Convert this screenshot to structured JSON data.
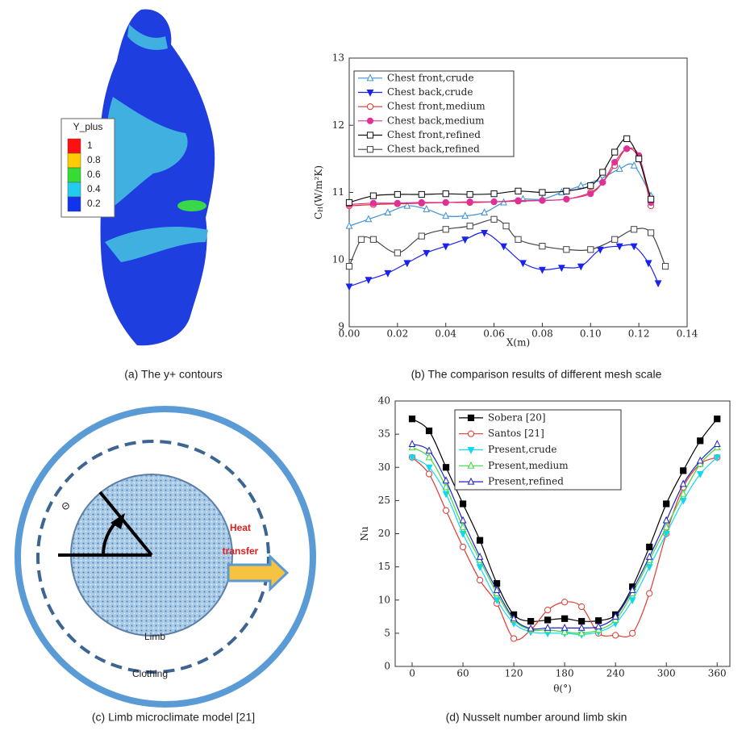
{
  "captions": [
    "(a) The y+ contours",
    "(b) The comparison results of different mesh scale",
    "(c) Limb microclimate model [21]",
    "(d) Nusselt number around limb skin"
  ],
  "contour_legend": {
    "title": "Y_plus",
    "labels": [
      "1",
      "0.8",
      "0.6",
      "0.4",
      "0.2"
    ],
    "colors": [
      "#ff1010",
      "#ffcc00",
      "#33dd33",
      "#22ccee",
      "#1133ee"
    ]
  },
  "diagram": {
    "angle": "Θ",
    "heat": "Heat",
    "transfer": "transfer",
    "limb": "Limb",
    "clothing": "Clothing"
  },
  "chart_data": [
    {
      "type": "line",
      "xlabel": "X(m)",
      "ylabel": {
        "main": "C",
        "sub": "H",
        "unit": "(W/m²K)"
      },
      "xlim": [
        0,
        0.14
      ],
      "xticks": [
        {
          "value": 0,
          "label": "0.00"
        },
        0.02,
        0.04,
        0.06,
        0.08,
        {
          "value": 0.1,
          "label": "0.10"
        },
        0.12,
        0.14
      ],
      "ylim": [
        9,
        13
      ],
      "yticks": [
        9,
        10,
        11,
        12,
        13
      ],
      "legend": "upper left",
      "series": [
        {
          "name": "Chest front,crude",
          "color": "#3f8fd8",
          "marker": "triangle-up",
          "filled": false,
          "x": [
            0,
            0.008,
            0.016,
            0.024,
            0.032,
            0.04,
            0.048,
            0.056,
            0.064,
            0.072,
            0.08,
            0.088,
            0.096,
            0.104,
            0.112,
            0.118,
            0.125
          ],
          "values": [
            10.5,
            10.6,
            10.7,
            10.8,
            10.75,
            10.65,
            10.65,
            10.7,
            10.85,
            10.9,
            10.9,
            11.0,
            11.1,
            11.2,
            11.35,
            11.4,
            10.95
          ]
        },
        {
          "name": "Chest back,crude",
          "color": "#1a22ee",
          "marker": "triangle-down",
          "filled": true,
          "x": [
            0,
            0.008,
            0.016,
            0.024,
            0.032,
            0.04,
            0.048,
            0.056,
            0.064,
            0.072,
            0.08,
            0.088,
            0.096,
            0.104,
            0.112,
            0.118,
            0.124,
            0.128
          ],
          "values": [
            9.6,
            9.7,
            9.8,
            9.95,
            10.1,
            10.2,
            10.3,
            10.4,
            10.2,
            9.95,
            9.85,
            9.88,
            9.9,
            10.15,
            10.2,
            10.2,
            9.95,
            9.65
          ]
        },
        {
          "name": "Chest front,medium",
          "color": "#dd3030",
          "marker": "circle",
          "filled": false,
          "x": [
            0,
            0.01,
            0.02,
            0.03,
            0.04,
            0.05,
            0.06,
            0.07,
            0.08,
            0.09,
            0.1,
            0.105,
            0.11,
            0.115,
            0.12,
            0.125
          ],
          "values": [
            10.8,
            10.82,
            10.83,
            10.84,
            10.85,
            10.85,
            10.86,
            10.87,
            10.88,
            10.9,
            11.0,
            11.15,
            11.4,
            11.65,
            11.5,
            10.8
          ]
        },
        {
          "name": "Chest back,medium",
          "color": "#e0309a",
          "marker": "circle",
          "filled": true,
          "x": [
            0,
            0.01,
            0.02,
            0.03,
            0.04,
            0.05,
            0.06,
            0.07,
            0.08,
            0.09,
            0.1,
            0.105,
            0.11,
            0.115,
            0.12,
            0.125
          ],
          "values": [
            10.82,
            10.84,
            10.84,
            10.85,
            10.85,
            10.86,
            10.86,
            10.88,
            10.88,
            10.9,
            10.98,
            11.15,
            11.45,
            11.65,
            11.55,
            10.85
          ]
        },
        {
          "name": "Chest front,refined",
          "color": "#111111",
          "marker": "square",
          "filled": false,
          "x": [
            0,
            0.01,
            0.02,
            0.03,
            0.04,
            0.05,
            0.06,
            0.07,
            0.08,
            0.09,
            0.1,
            0.105,
            0.11,
            0.115,
            0.12,
            0.125
          ],
          "values": [
            10.85,
            10.95,
            10.97,
            10.97,
            10.98,
            10.97,
            10.98,
            11.02,
            11.0,
            11.02,
            11.1,
            11.3,
            11.6,
            11.8,
            11.5,
            10.9
          ]
        },
        {
          "name": "Chest back,refined",
          "color": "#444444",
          "marker": "square-half",
          "filled": true,
          "x": [
            0,
            0.005,
            0.01,
            0.02,
            0.03,
            0.04,
            0.05,
            0.06,
            0.065,
            0.07,
            0.08,
            0.09,
            0.1,
            0.11,
            0.118,
            0.125,
            0.131
          ],
          "values": [
            9.9,
            10.3,
            10.3,
            10.1,
            10.35,
            10.45,
            10.5,
            10.6,
            10.5,
            10.3,
            10.2,
            10.15,
            10.15,
            10.3,
            10.45,
            10.4,
            9.9
          ]
        }
      ]
    },
    {
      "type": "line",
      "xlabel": "θ(°)",
      "ylabel": {
        "main": "Nu"
      },
      "xlim": [
        -20,
        375
      ],
      "xticks": [
        0,
        60,
        120,
        180,
        240,
        300,
        360
      ],
      "ylim": [
        0,
        40
      ],
      "yticks": [
        0,
        5,
        10,
        15,
        20,
        25,
        30,
        35,
        40
      ],
      "legend": "upper center",
      "series": [
        {
          "name": "Sobera [20]",
          "color": "#000000",
          "marker": "square",
          "filled": true,
          "x": [
            0,
            20,
            40,
            60,
            80,
            100,
            120,
            140,
            160,
            180,
            200,
            220,
            240,
            260,
            280,
            300,
            320,
            340,
            360
          ],
          "values": [
            37.3,
            35.5,
            30,
            24.5,
            19,
            12.5,
            7.8,
            6.8,
            7,
            7.2,
            6.8,
            6.9,
            7.8,
            12,
            18,
            24.5,
            29.5,
            34,
            37.3
          ]
        },
        {
          "name": "Santos [21]",
          "color": "#e03a30",
          "marker": "circle",
          "filled": false,
          "x": [
            0,
            20,
            40,
            60,
            80,
            100,
            120,
            140,
            160,
            180,
            200,
            220,
            240,
            260,
            280,
            300,
            320,
            340,
            360
          ],
          "values": [
            31.5,
            29,
            23.5,
            18,
            13,
            9.5,
            4.2,
            5.5,
            8.5,
            9.7,
            9,
            5,
            4.7,
            5,
            11,
            20,
            27,
            30.5,
            31.5
          ]
        },
        {
          "name": "Present,crude",
          "color": "#10d8ee",
          "marker": "triangle-down",
          "filled": true,
          "x": [
            0,
            20,
            40,
            60,
            80,
            100,
            120,
            140,
            160,
            180,
            200,
            220,
            240,
            260,
            280,
            300,
            320,
            340,
            360
          ],
          "values": [
            31.5,
            30,
            26,
            20,
            15,
            10,
            6.5,
            5.2,
            5,
            5,
            4.8,
            5.2,
            6.5,
            10,
            15,
            20,
            25,
            29,
            31.5
          ]
        },
        {
          "name": "Present,medium",
          "color": "#3ed83e",
          "marker": "triangle-up",
          "filled": false,
          "x": [
            0,
            20,
            40,
            60,
            80,
            100,
            120,
            140,
            160,
            180,
            200,
            220,
            240,
            260,
            280,
            300,
            320,
            340,
            360
          ],
          "values": [
            33,
            31.5,
            27,
            21,
            16,
            11,
            7,
            5.5,
            5.5,
            5.2,
            5,
            5.5,
            7,
            11,
            16,
            21,
            26,
            30.5,
            33
          ]
        },
        {
          "name": "Present,refined",
          "color": "#2020c0",
          "marker": "triangle-up",
          "filled": false,
          "x": [
            0,
            20,
            40,
            60,
            80,
            100,
            120,
            140,
            160,
            180,
            200,
            220,
            240,
            260,
            280,
            300,
            320,
            340,
            360
          ],
          "values": [
            33.5,
            32.5,
            28,
            22,
            16.5,
            11.5,
            7.2,
            5.7,
            5.8,
            5.8,
            5.8,
            6,
            7.5,
            11.5,
            16.5,
            22,
            27.5,
            31,
            33.5
          ]
        }
      ]
    }
  ]
}
